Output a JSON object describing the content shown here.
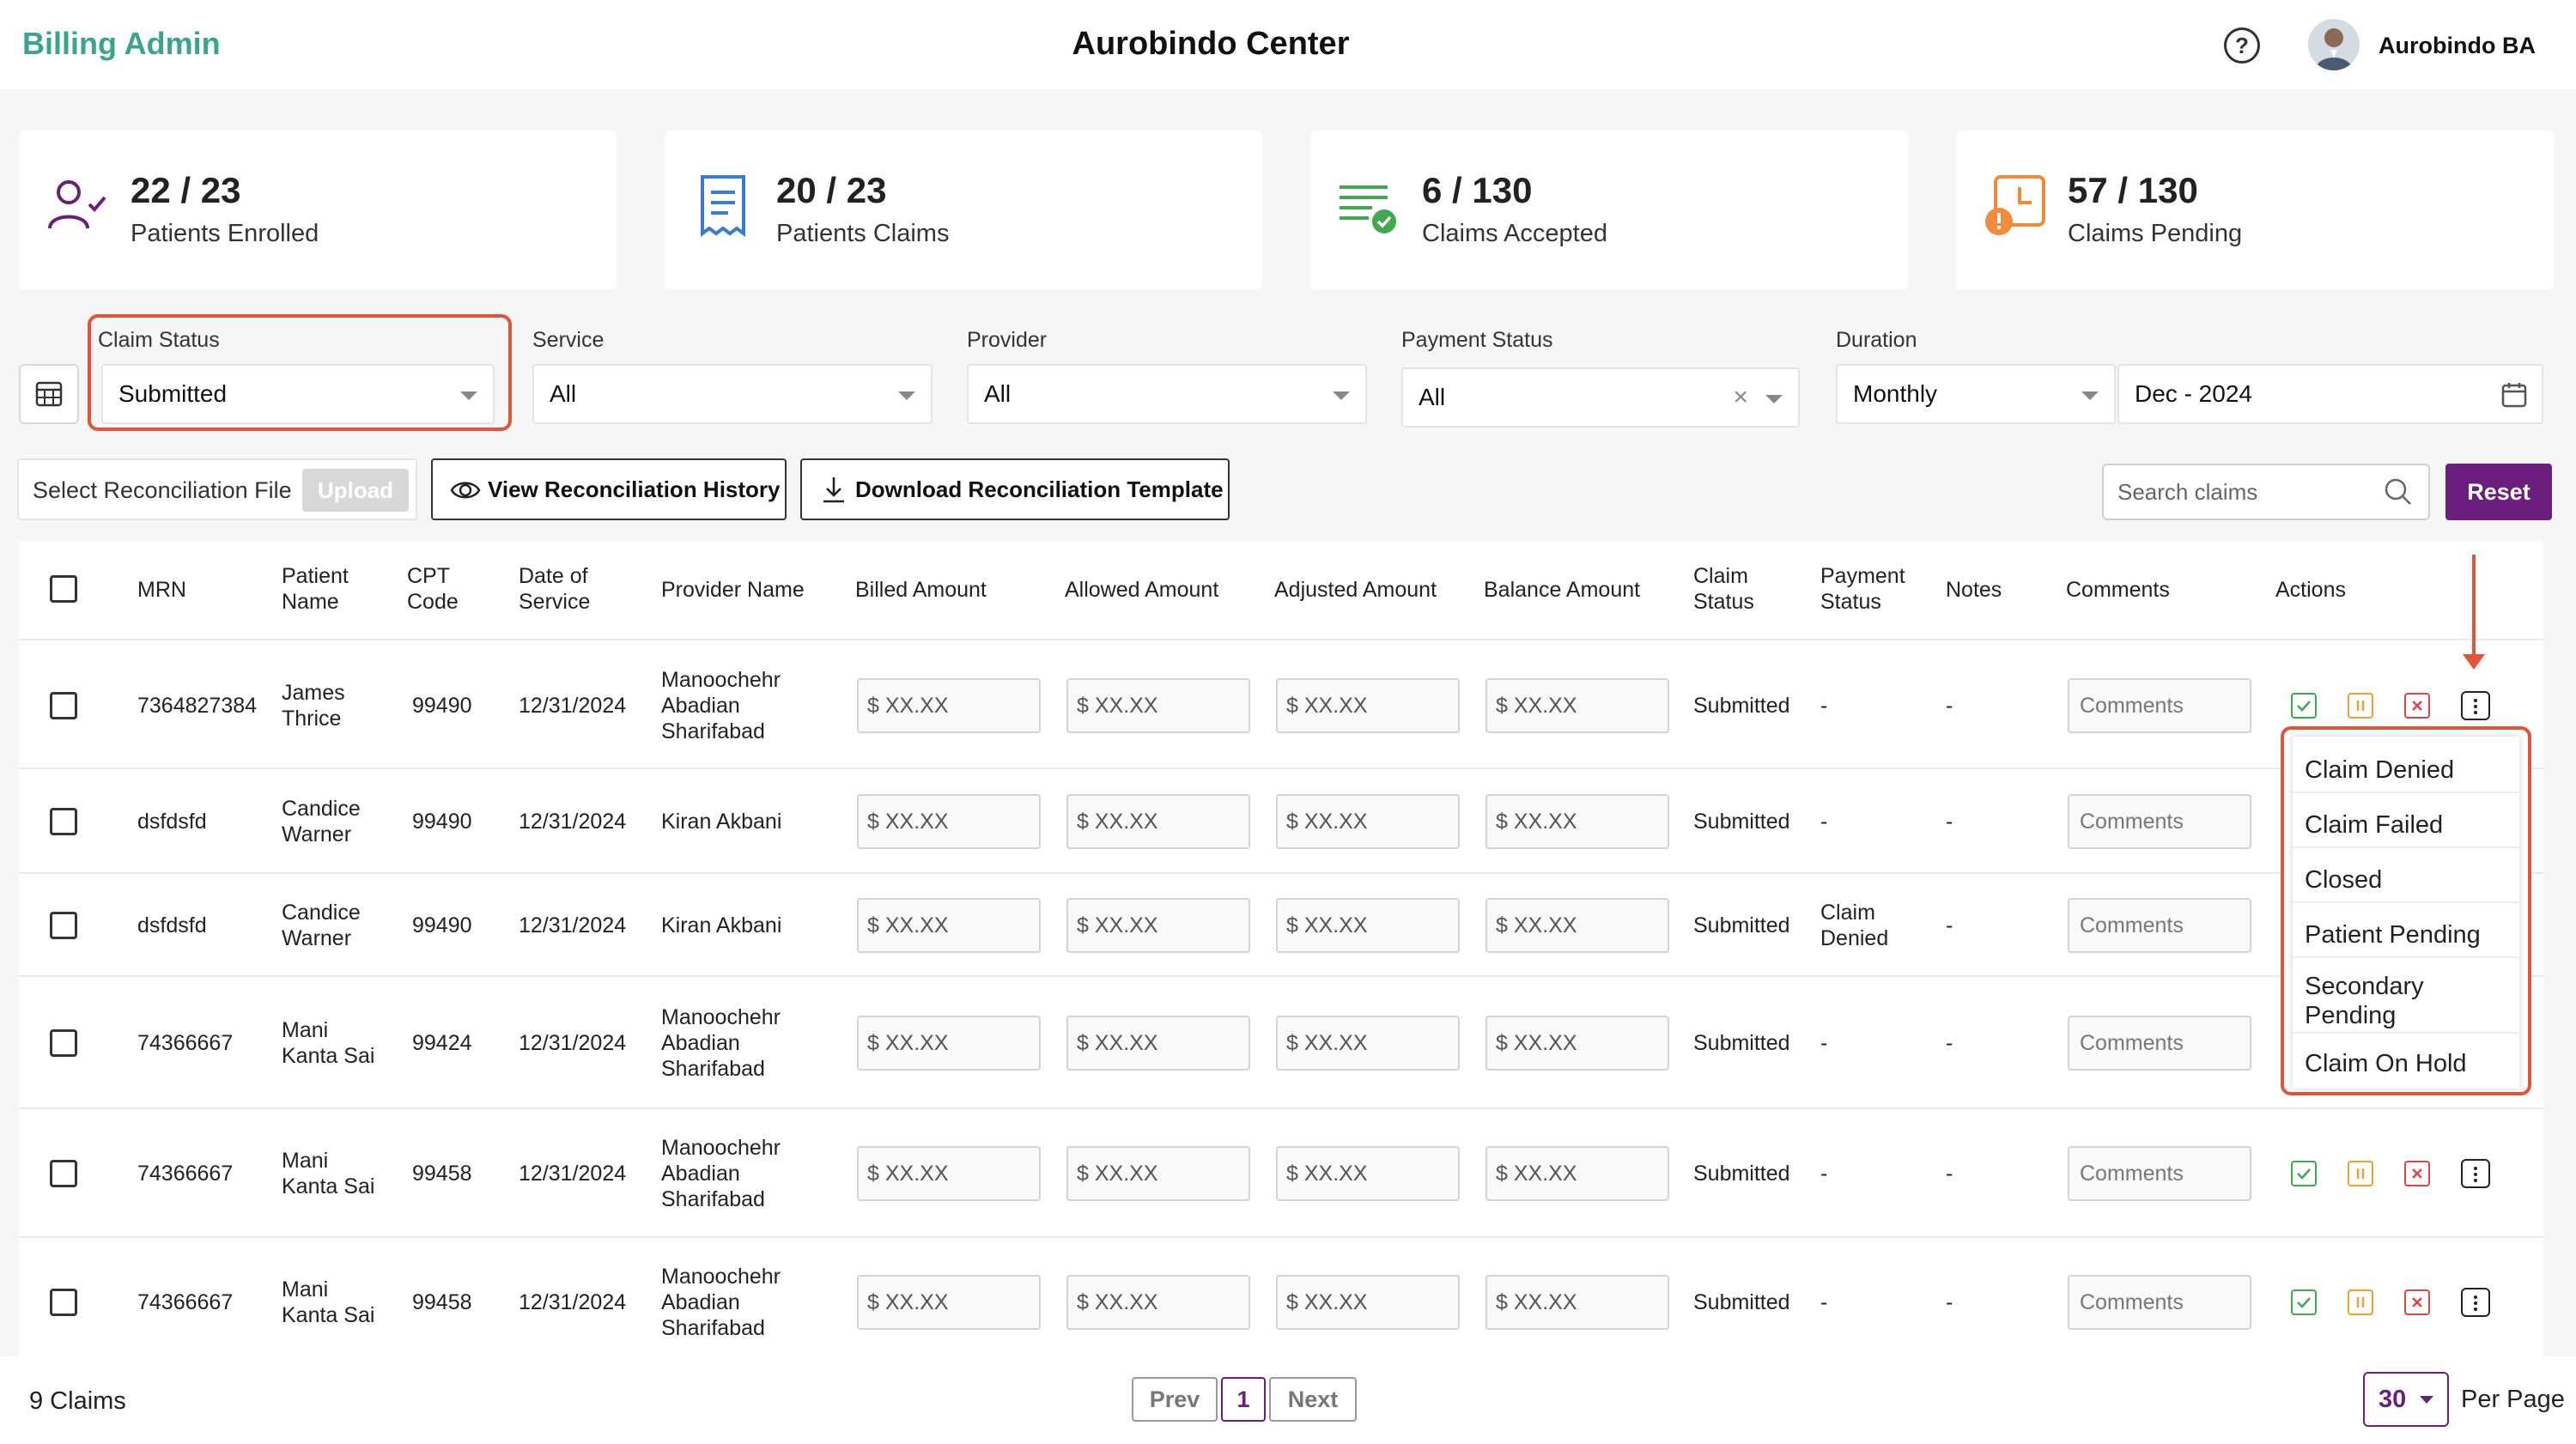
{
  "header": {
    "brand": "Billing Admin",
    "center": "Aurobindo Center",
    "help": "?",
    "user": "Aurobindo BA"
  },
  "stats": [
    {
      "value": "22 / 23",
      "label": "Patients Enrolled",
      "icon": "user-check-icon",
      "color": "#6b1e7e"
    },
    {
      "value": "20 / 23",
      "label": "Patients Claims",
      "icon": "receipt-icon",
      "color": "#3a7bd5"
    },
    {
      "value": "6 / 130",
      "label": "Claims Accepted",
      "icon": "list-check-icon",
      "color": "#41a852"
    },
    {
      "value": "57 / 130",
      "label": "Claims Pending",
      "icon": "clock-alert-icon",
      "color": "#f08a3c"
    }
  ],
  "filters": {
    "claim_status": {
      "label": "Claim Status",
      "value": "Submitted"
    },
    "service": {
      "label": "Service",
      "value": "All"
    },
    "provider": {
      "label": "Provider",
      "value": "All"
    },
    "payment_status": {
      "label": "Payment Status",
      "value": "All"
    },
    "duration": {
      "label": "Duration",
      "value": "Monthly",
      "month": "Dec - 2024"
    }
  },
  "toolbar": {
    "recon_label": "Select Reconciliation File",
    "upload": "Upload",
    "view_history": "View Reconciliation History",
    "download_template": "Download Reconciliation Template",
    "search_placeholder": "Search claims",
    "reset": "Reset"
  },
  "table": {
    "headers": {
      "mrn": "MRN",
      "patient_l1": "Patient",
      "patient_l2": "Name",
      "cpt_l1": "CPT",
      "cpt_l2": "Code",
      "dos_l1": "Date of",
      "dos_l2": "Service",
      "provider": "Provider Name",
      "billed": "Billed Amount",
      "allowed": "Allowed Amount",
      "adjusted": "Adjusted Amount",
      "balance": "Balance Amount",
      "claim_l1": "Claim",
      "claim_l2": "Status",
      "payment_l1": "Payment",
      "payment_l2": "Status",
      "notes": "Notes",
      "comments": "Comments",
      "actions": "Actions"
    },
    "amount_placeholder": "$ XX.XX",
    "comment_placeholder": "Comments",
    "rows": [
      {
        "mrn": "7364827384",
        "name1": "James",
        "name2": "Thrice",
        "cpt": "99490",
        "date": "12/31/2024",
        "prov1": "Manoochehr",
        "prov2": "Abadian",
        "prov3": "Sharifabad",
        "claim": "Submitted",
        "pay1": "-",
        "pay2": "",
        "notes": "-"
      },
      {
        "mrn": "dsfdsfd",
        "name1": "Candice",
        "name2": "Warner",
        "cpt": "99490",
        "date": "12/31/2024",
        "prov1": "Kiran Akbani",
        "prov2": "",
        "prov3": "",
        "claim": "Submitted",
        "pay1": "-",
        "pay2": "",
        "notes": "-"
      },
      {
        "mrn": "dsfdsfd",
        "name1": "Candice",
        "name2": "Warner",
        "cpt": "99490",
        "date": "12/31/2024",
        "prov1": "Kiran Akbani",
        "prov2": "",
        "prov3": "",
        "claim": "Submitted",
        "pay1": "Claim",
        "pay2": "Denied",
        "notes": "-"
      },
      {
        "mrn": "74366667",
        "name1": "Mani",
        "name2": "Kanta Sai",
        "cpt": "99424",
        "date": "12/31/2024",
        "prov1": "Manoochehr",
        "prov2": "Abadian",
        "prov3": "Sharifabad",
        "claim": "Submitted",
        "pay1": "-",
        "pay2": "",
        "notes": "-"
      },
      {
        "mrn": "74366667",
        "name1": "Mani",
        "name2": "Kanta Sai",
        "cpt": "99458",
        "date": "12/31/2024",
        "prov1": "Manoochehr",
        "prov2": "Abadian",
        "prov3": "Sharifabad",
        "claim": "Submitted",
        "pay1": "-",
        "pay2": "",
        "notes": "-"
      },
      {
        "mrn": "74366667",
        "name1": "Mani",
        "name2": "Kanta Sai",
        "cpt": "99458",
        "date": "12/31/2024",
        "prov1": "Manoochehr",
        "prov2": "Abadian",
        "prov3": "Sharifabad",
        "claim": "Submitted",
        "pay1": "-",
        "pay2": "",
        "notes": "-"
      }
    ]
  },
  "dropdown": {
    "items": [
      "Claim Denied",
      "Claim Failed",
      "Closed",
      "Patient Pending",
      "Secondary",
      "Pending",
      "Claim On Hold"
    ]
  },
  "footer": {
    "count": "9 Claims",
    "prev": "Prev",
    "page": "1",
    "next": "Next",
    "per_page_value": "30",
    "per_page_label": "Per Page"
  },
  "colors": {
    "brand": "#3aa58c",
    "primary": "#6b1e7e",
    "highlight": "#e1553a"
  }
}
